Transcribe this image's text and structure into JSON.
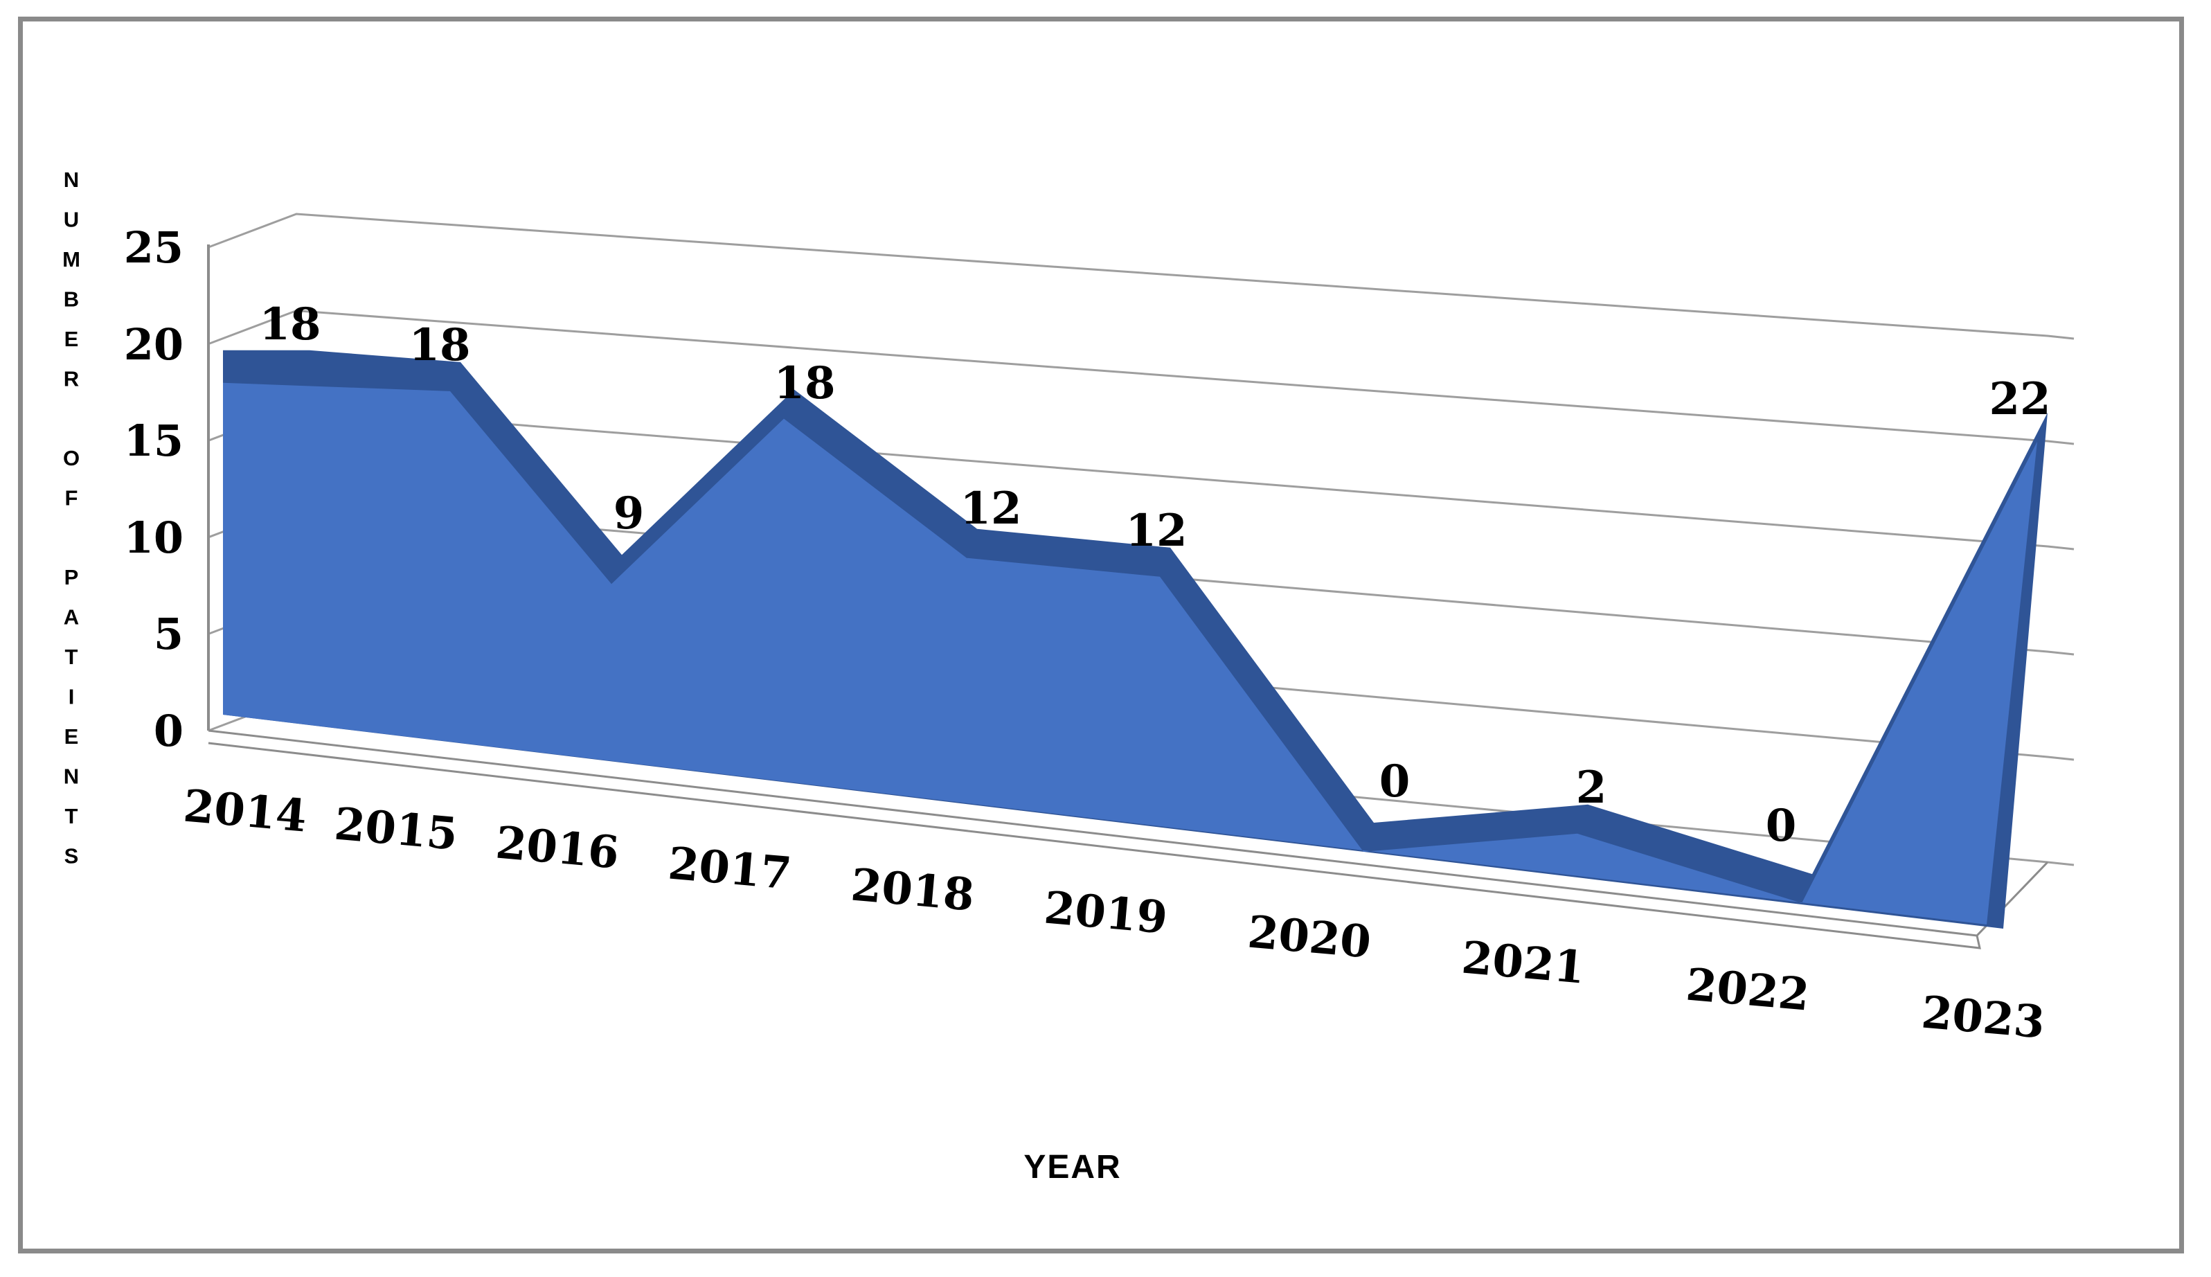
{
  "chart_data": {
    "type": "area",
    "style": "3d-area",
    "title": "",
    "xlabel": "YEAR",
    "ylabel": "NUMBER OF PATIENTS",
    "categories": [
      "2014",
      "2015",
      "2016",
      "2017",
      "2018",
      "2019",
      "2020",
      "2021",
      "2022",
      "2023"
    ],
    "values": [
      18,
      18,
      9,
      18,
      12,
      12,
      0,
      2,
      0,
      22
    ],
    "data_labels": [
      "18",
      "18",
      "9",
      "18",
      "12",
      "12",
      "0",
      "2",
      "0",
      "22"
    ],
    "yticks": [
      25,
      20,
      15,
      10,
      5,
      0
    ],
    "ylim": [
      0,
      25
    ],
    "grid": true,
    "legend_position": "none",
    "colors": {
      "area_face": "#4472C4",
      "area_top_band": "#2F5496",
      "gridline": "#9E9E9E",
      "axis_line": "#8C8C8C",
      "frame_border": "#8A8A8A",
      "label_text": "#000000",
      "background": "#FFFFFF"
    }
  }
}
